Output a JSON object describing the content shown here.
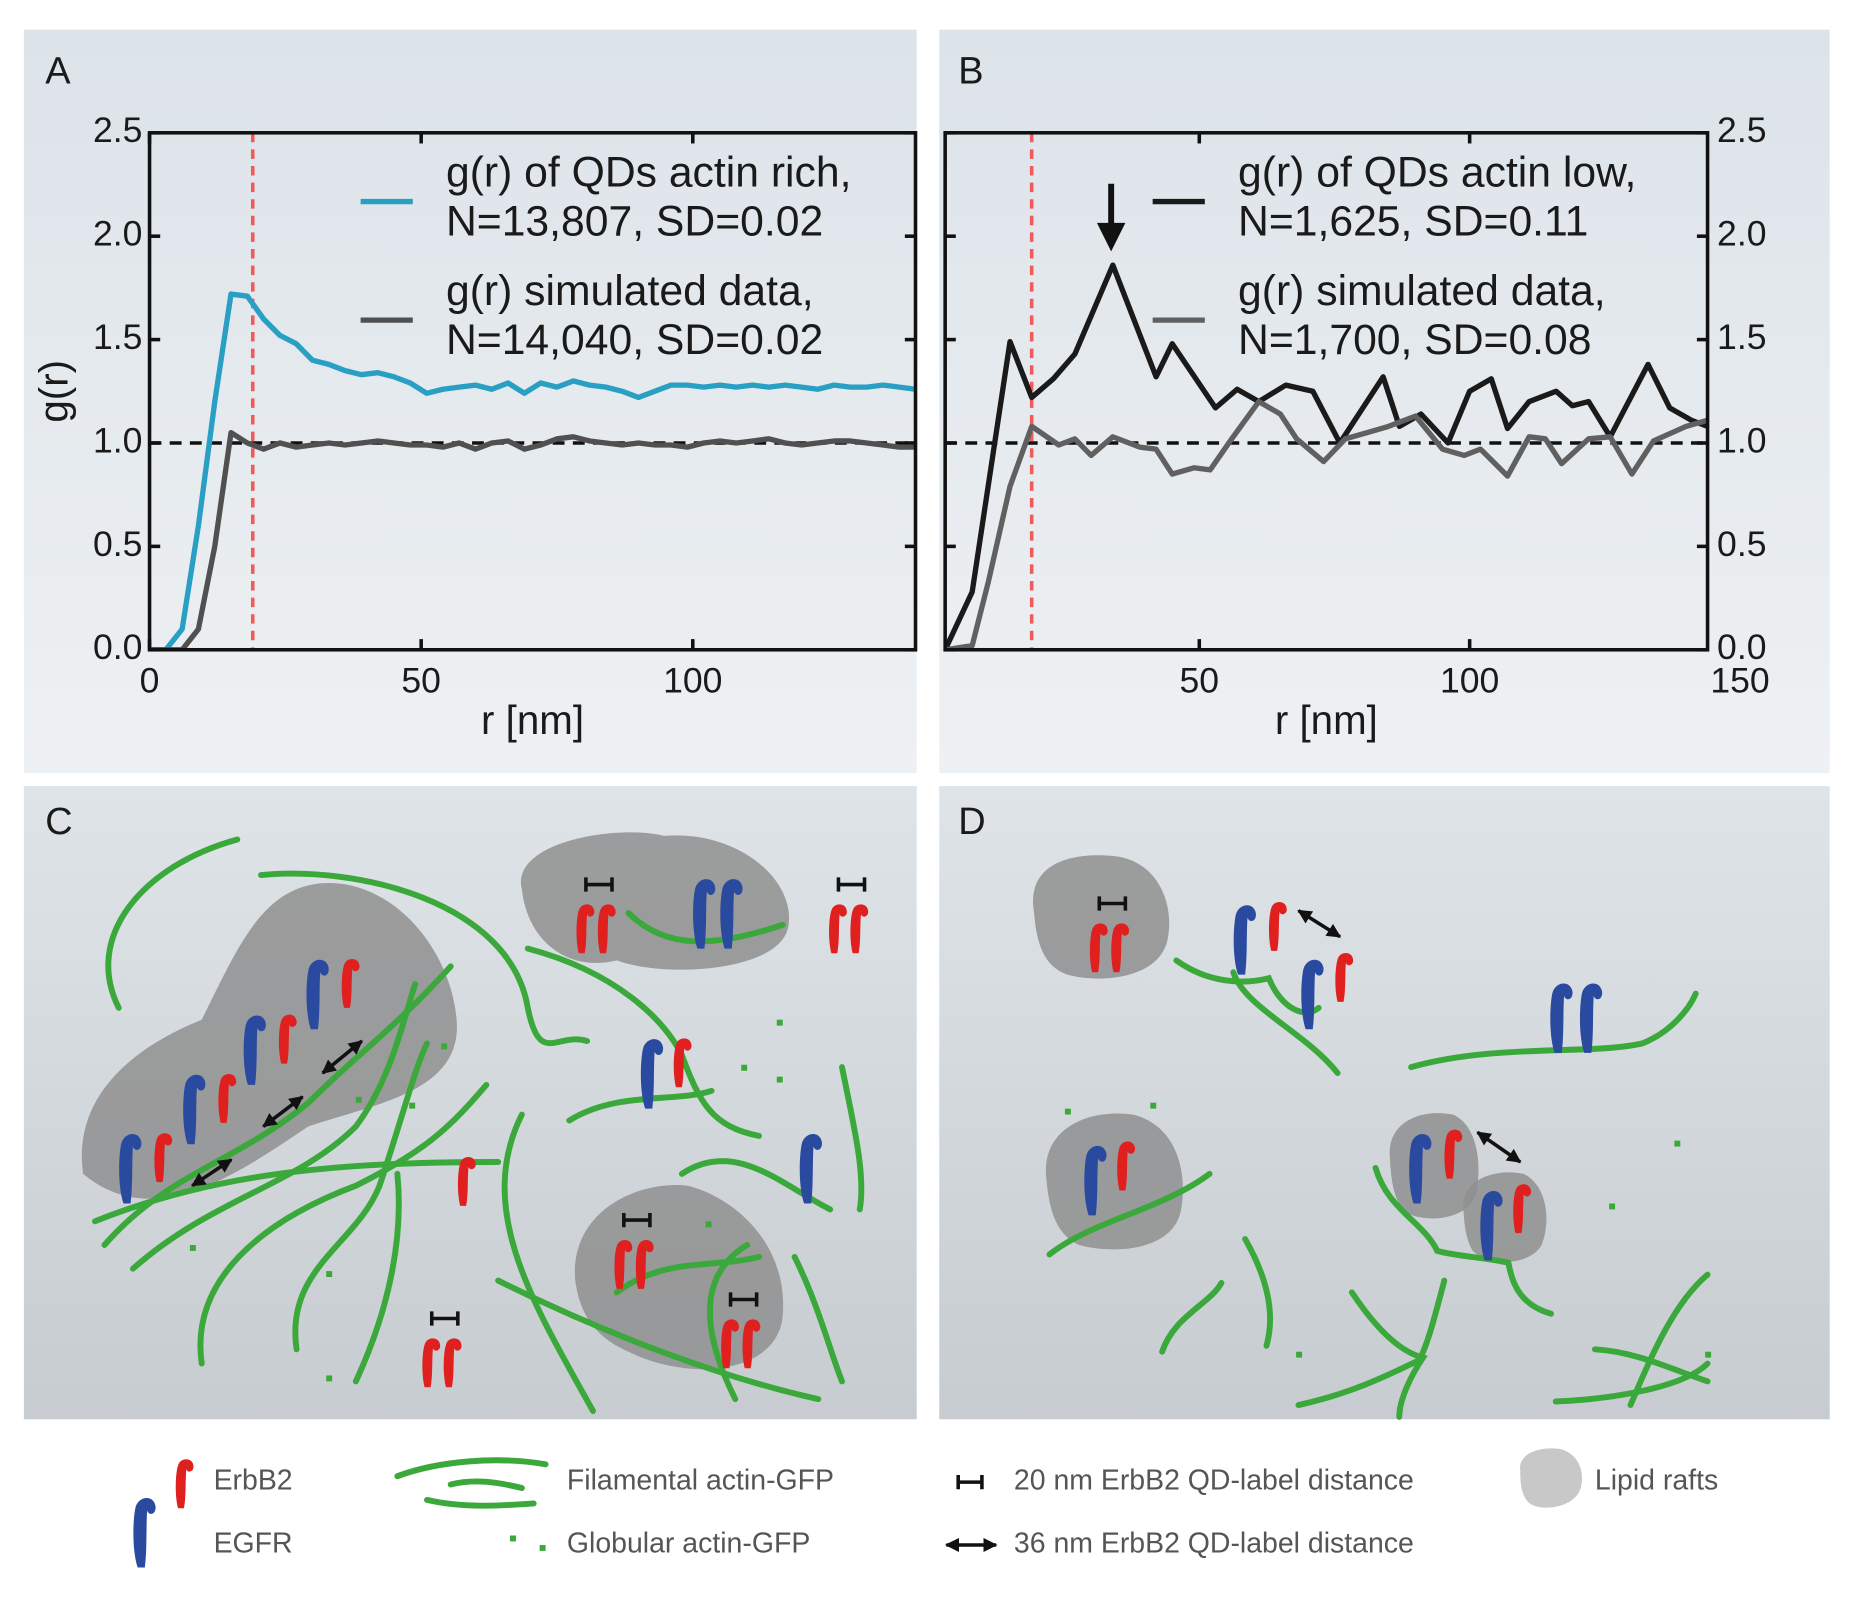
{
  "chart_data": [
    {
      "type": "line",
      "xlabel": "r [nm]",
      "ylabel": "g(r)",
      "xlim": [
        0,
        141
      ],
      "ylim": [
        0,
        2.5
      ],
      "xticks": [
        0,
        50,
        100
      ],
      "yticks": [
        {
          "value": 0,
          "label": "0.0"
        },
        0.5,
        {
          "value": 1,
          "label": "1.0"
        },
        1.5,
        {
          "value": 2,
          "label": "2.0"
        },
        2.5
      ],
      "yaxis_side": "left",
      "vline": 19,
      "hline": 1,
      "x": [
        0,
        3,
        6,
        9,
        12,
        15,
        18,
        21,
        24,
        27,
        30,
        33,
        36,
        39,
        42,
        45,
        48,
        51,
        54,
        57,
        60,
        63,
        66,
        69,
        72,
        75,
        78,
        81,
        84,
        87,
        90,
        93,
        96,
        99,
        102,
        105,
        108,
        111,
        114,
        117,
        120,
        123,
        126,
        129,
        132,
        135,
        138,
        141
      ],
      "series": [
        {
          "name": "g(r) of QDs actin rich,\nN=13,807, SD=0.02",
          "color": "#2a9fc4",
          "values": [
            0,
            0,
            0.1,
            0.6,
            1.2,
            1.72,
            1.71,
            1.6,
            1.52,
            1.48,
            1.4,
            1.38,
            1.35,
            1.33,
            1.34,
            1.32,
            1.29,
            1.24,
            1.26,
            1.27,
            1.28,
            1.26,
            1.29,
            1.24,
            1.29,
            1.27,
            1.3,
            1.28,
            1.27,
            1.25,
            1.22,
            1.25,
            1.28,
            1.28,
            1.27,
            1.28,
            1.27,
            1.28,
            1.27,
            1.28,
            1.27,
            1.26,
            1.28,
            1.27,
            1.27,
            1.28,
            1.27,
            1.26
          ]
        },
        {
          "name": "g(r) simulated data,\nN=14,040, SD=0.02",
          "color": "#505050",
          "values": [
            0,
            0,
            0,
            0.1,
            0.5,
            1.05,
            1,
            0.97,
            1,
            0.98,
            0.99,
            1,
            0.99,
            1,
            1.01,
            1,
            0.99,
            0.99,
            0.98,
            1,
            0.97,
            1,
            1.01,
            0.97,
            0.99,
            1.02,
            1.03,
            1.01,
            1,
            0.99,
            1,
            0.99,
            0.99,
            0.98,
            1,
            1.01,
            1,
            1.01,
            1.02,
            1,
            0.99,
            1,
            1.01,
            1.01,
            1,
            0.99,
            0.98,
            0.98
          ]
        }
      ]
    },
    {
      "type": "line",
      "xlabel": "r [nm]",
      "xlim": [
        3,
        144
      ],
      "ylim": [
        0,
        2.5
      ],
      "xticks": [
        50,
        100,
        150
      ],
      "yticks": [
        {
          "value": 0,
          "label": "0.0"
        },
        0.5,
        {
          "value": 1,
          "label": "1.0"
        },
        1.5,
        {
          "value": 2,
          "label": "2.0"
        },
        2.5
      ],
      "yaxis_side": "right",
      "vline": 19,
      "hline": 1,
      "series": [
        {
          "name": "g(r) of QDs actin low,\nN=1,625, SD=0.11",
          "color": "#1a1a1a",
          "x": [
            3,
            8,
            12,
            15,
            19,
            23,
            27,
            34,
            42,
            45,
            53,
            57,
            61,
            66,
            71,
            76,
            84,
            87,
            91,
            96,
            100,
            104,
            107,
            111,
            116,
            119,
            122,
            126,
            133,
            137,
            141,
            144
          ],
          "values": [
            0,
            0.28,
            0.97,
            1.49,
            1.22,
            1.31,
            1.43,
            1.86,
            1.32,
            1.48,
            1.17,
            1.26,
            1.2,
            1.28,
            1.25,
            1,
            1.32,
            1.08,
            1.14,
            1,
            1.25,
            1.31,
            1.07,
            1.2,
            1.25,
            1.18,
            1.2,
            1.03,
            1.38,
            1.17,
            1.11,
            1.08
          ]
        },
        {
          "name": "g(r) simulated data,\nN=1,700, SD=0.08",
          "color": "#606060",
          "x": [
            3,
            8,
            11,
            15,
            19,
            24,
            27,
            30,
            34,
            39,
            42,
            45,
            49,
            52,
            56,
            61,
            65,
            68,
            73,
            77,
            81,
            85,
            90,
            95,
            99,
            102,
            107,
            111,
            114,
            117,
            122,
            126,
            130,
            134,
            140,
            144
          ],
          "values": [
            0,
            0.02,
            0.33,
            0.79,
            1.08,
            0.99,
            1.02,
            0.94,
            1.03,
            0.98,
            0.97,
            0.85,
            0.88,
            0.87,
            1.02,
            1.2,
            1.14,
            1.02,
            0.91,
            1.02,
            1.05,
            1.08,
            1.13,
            0.97,
            0.94,
            0.97,
            0.84,
            1.03,
            1.02,
            0.9,
            1.02,
            1.03,
            0.85,
            1.01,
            1.08,
            1.11
          ]
        }
      ]
    }
  ],
  "panels": [
    "A",
    "B",
    "C",
    "D"
  ],
  "legend": {
    "items": [
      "ErbB2",
      "EGFR",
      "Filamental actin-GFP",
      "Globular actin-GFP",
      "20 nm ErbB2 QD-label distance",
      "36 nm ErbB2 QD-label distance",
      "Lipid rafts"
    ]
  }
}
